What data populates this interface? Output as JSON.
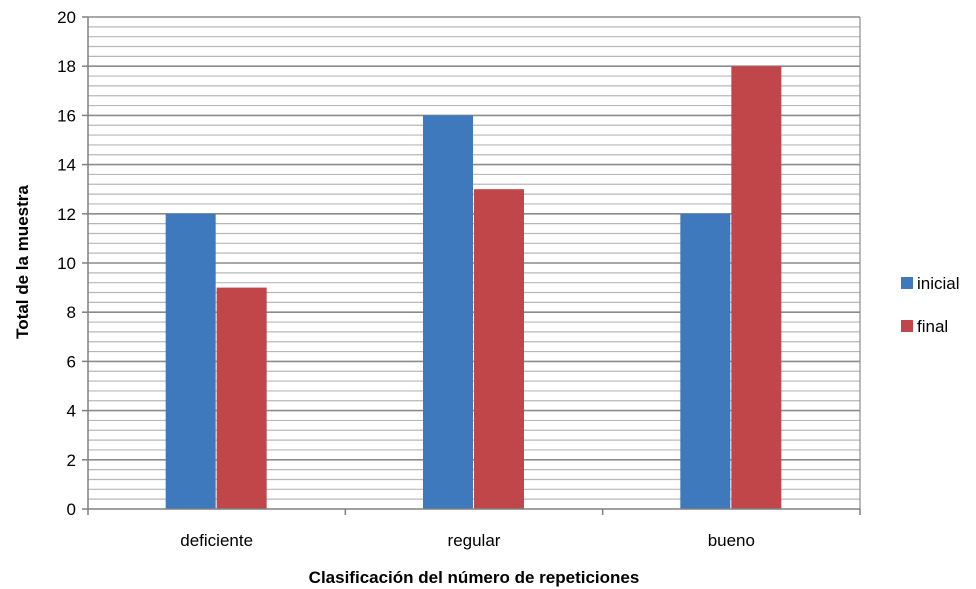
{
  "chart_data": {
    "type": "bar",
    "categories": [
      "deficiente",
      "regular",
      "bueno"
    ],
    "series": [
      {
        "name": "inicial",
        "values": [
          12,
          16,
          12
        ],
        "color": "#3E79BE"
      },
      {
        "name": "final",
        "values": [
          9,
          13,
          18
        ],
        "color": "#C0464A"
      }
    ],
    "xlabel": "Clasificación del número de repeticiones",
    "ylabel": "Total de la muestra",
    "ylim": [
      0,
      20
    ],
    "yticks": [
      "0",
      "2",
      "4",
      "6",
      "8",
      "10",
      "12",
      "14",
      "16",
      "18",
      "20"
    ],
    "grid": true,
    "legend_position": "right"
  }
}
